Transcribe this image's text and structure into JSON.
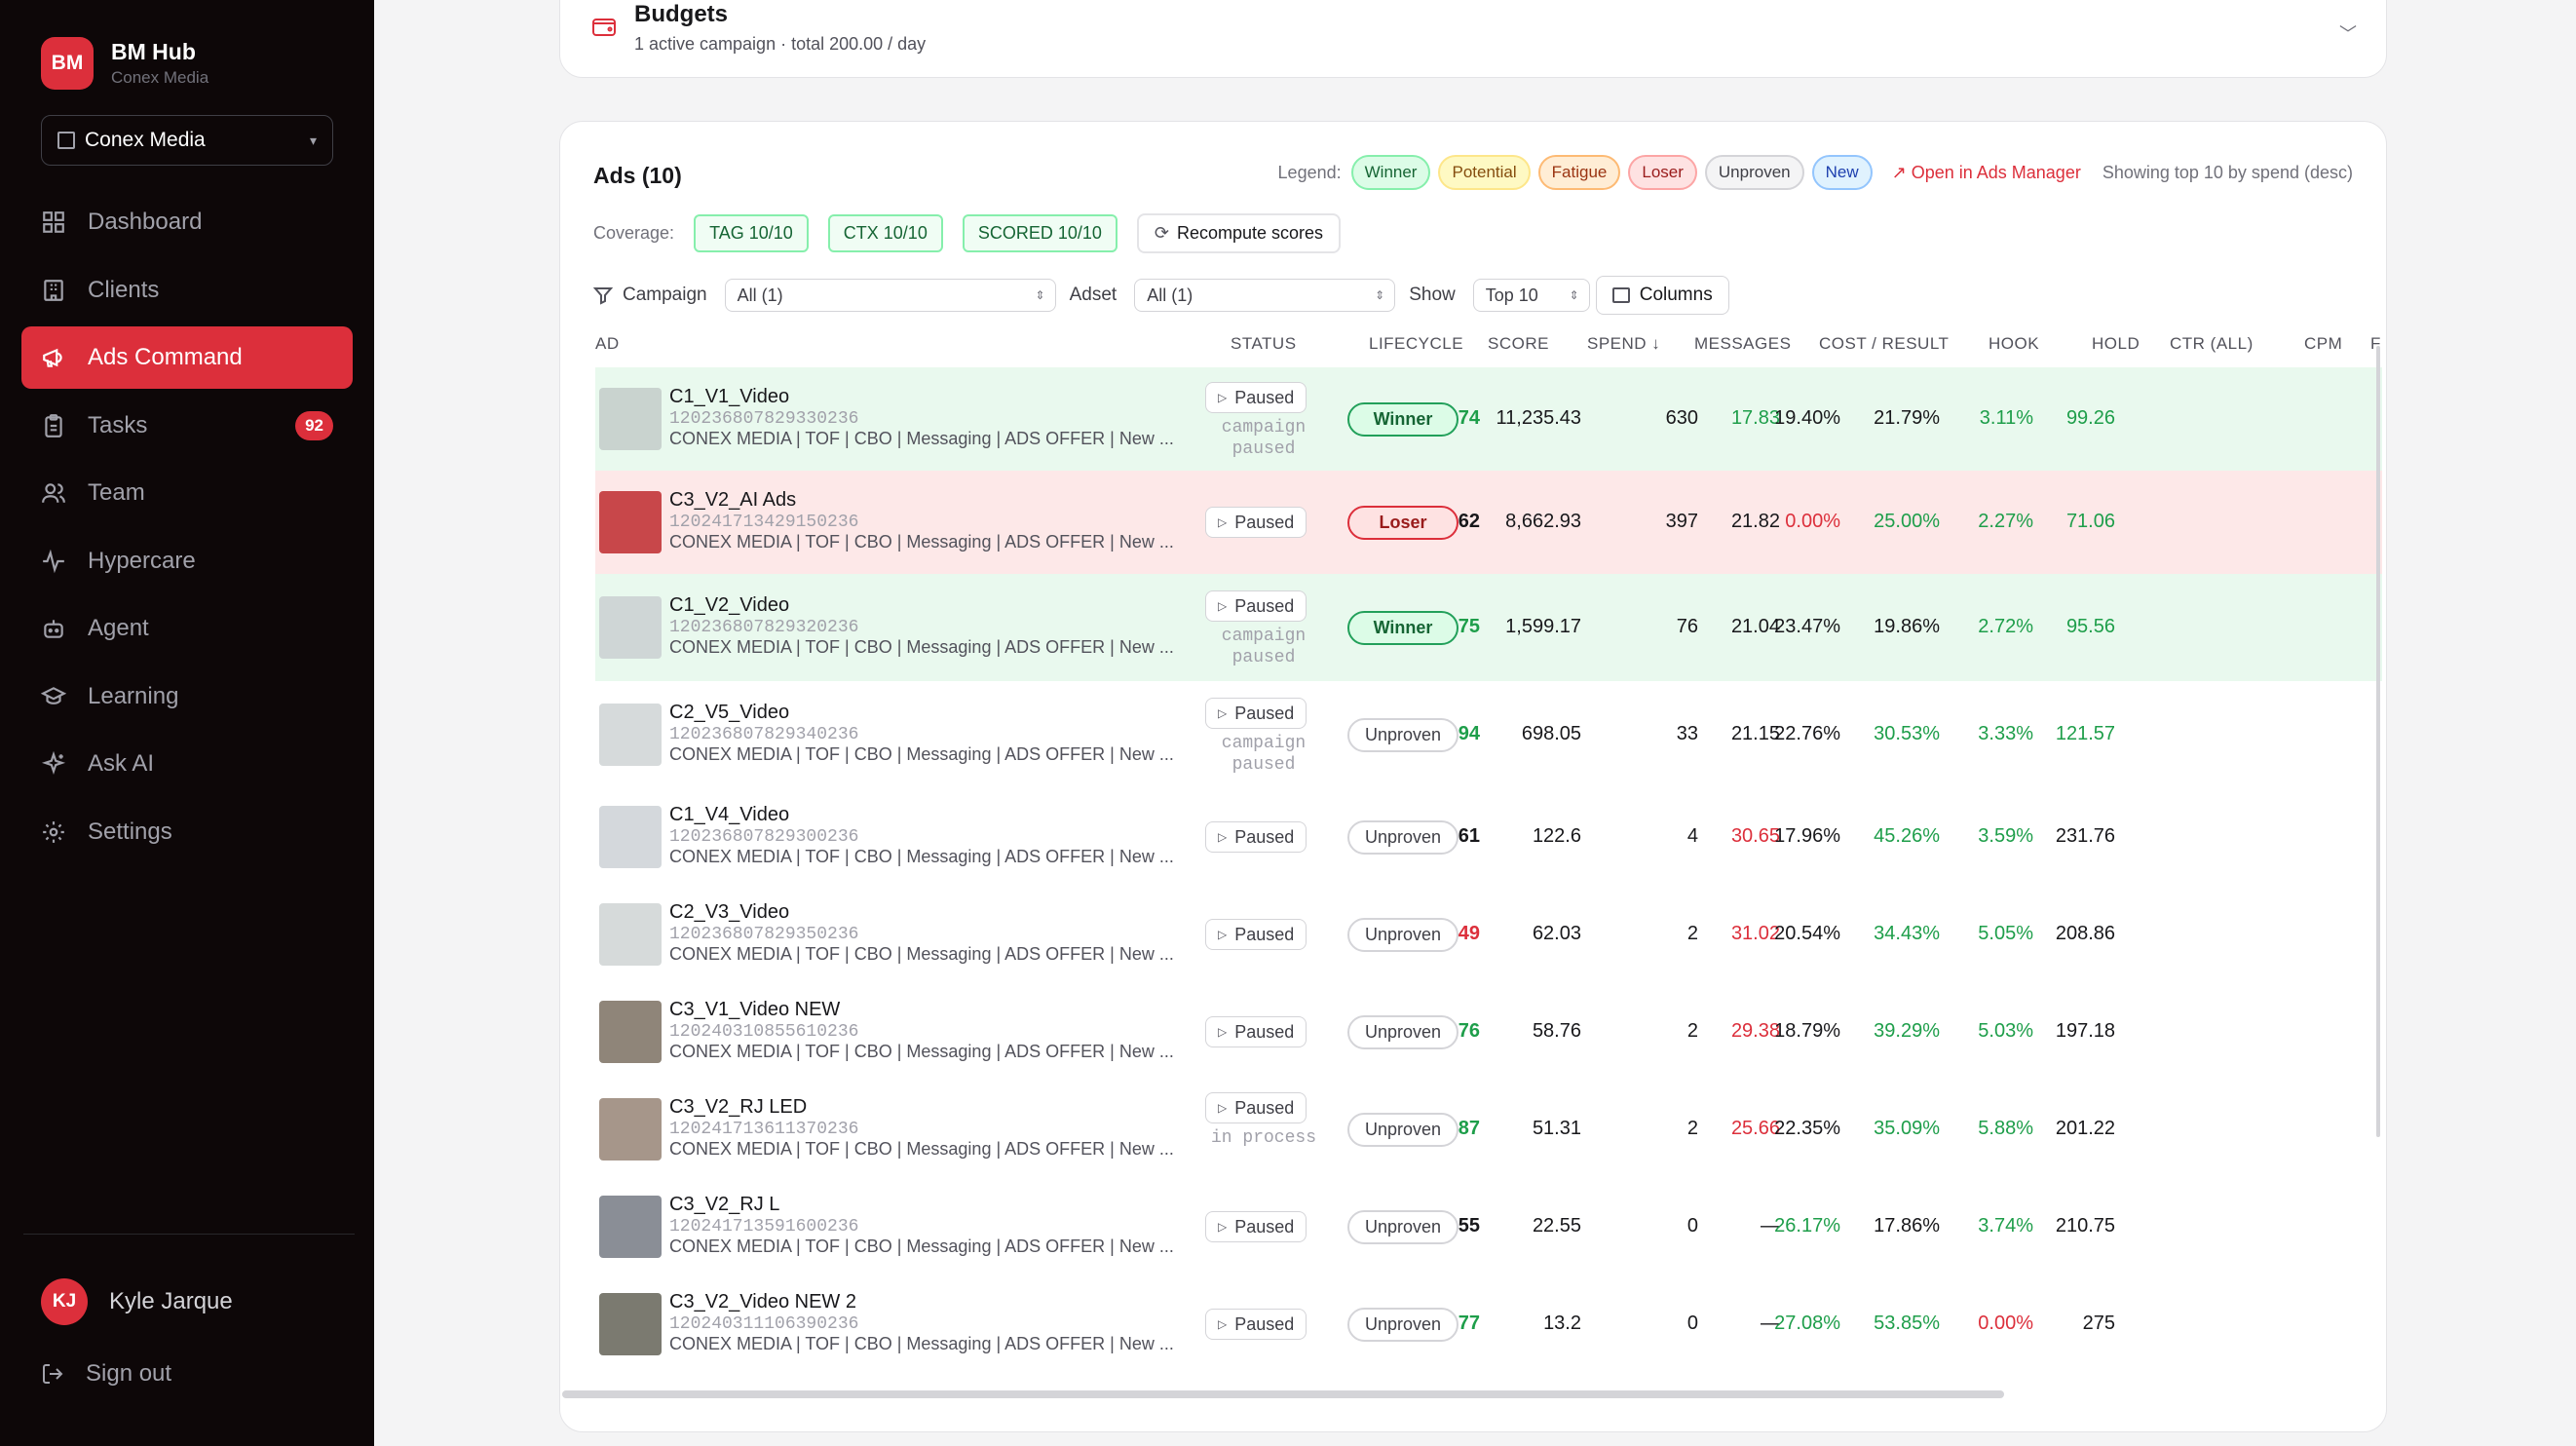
{
  "sidebar": {
    "brand_initials": "BM",
    "brand_name": "BM Hub",
    "brand_sub": "Conex Media",
    "org_select": "Conex Media",
    "nav": [
      {
        "label": "Dashboard",
        "icon": "grid-icon"
      },
      {
        "label": "Clients",
        "icon": "building-icon"
      },
      {
        "label": "Ads Command",
        "icon": "megaphone-icon",
        "active": true
      },
      {
        "label": "Tasks",
        "icon": "clipboard-icon",
        "badge": "92"
      },
      {
        "label": "Team",
        "icon": "users-icon"
      },
      {
        "label": "Hypercare",
        "icon": "pulse-icon"
      },
      {
        "label": "Agent",
        "icon": "bot-icon"
      },
      {
        "label": "Learning",
        "icon": "graduation-cap-icon"
      },
      {
        "label": "Ask AI",
        "icon": "sparkles-icon"
      },
      {
        "label": "Settings",
        "icon": "gear-icon"
      }
    ],
    "user_initials": "KJ",
    "user_name": "Kyle Jarque",
    "signout": "Sign out"
  },
  "budgets": {
    "title": "Budgets",
    "subtitle": "1 active campaign · total 200.00 / day"
  },
  "ads": {
    "title": "Ads (10)",
    "legend_label": "Legend:",
    "legend": [
      "Winner",
      "Potential",
      "Fatigue",
      "Loser",
      "Unproven",
      "New"
    ],
    "open_link": "↗ Open in Ads Manager",
    "showing": "Showing top 10 by spend (desc)",
    "coverage_label": "Coverage:",
    "coverage": [
      "TAG  10/10",
      "CTX  10/10",
      "SCORED  10/10"
    ],
    "recompute": "Recompute scores",
    "filter_campaign_label": "Campaign",
    "filter_campaign_value": "All (1)",
    "filter_adset_label": "Adset",
    "filter_adset_value": "All (1)",
    "show_label": "Show",
    "show_value": "Top 10",
    "columns_btn": "Columns",
    "headers": [
      "AD",
      "STATUS",
      "LIFECYCLE",
      "SCORE",
      "SPEND ↓",
      "MESSAGES",
      "COST / RESULT",
      "HOOK",
      "HOLD",
      "CTR (ALL)",
      "CPM",
      "F"
    ],
    "rows": [
      {
        "name": "C1_V1_Video",
        "id": "120236807829330236",
        "campaign": "CONEX MEDIA | TOF | CBO | Messaging | ADS OFFER | New ...",
        "status": "Paused",
        "note": "campaign paused",
        "lifecycle": "Winner",
        "score": "74",
        "spend": "11,235.43",
        "messages": "630",
        "cost": "17.83",
        "hook": "19.40%",
        "hold": "21.79%",
        "ctr": "3.11%",
        "cpm": "99.26"
      },
      {
        "name": "C3_V2_AI Ads",
        "id": "120241713429150236",
        "campaign": "CONEX MEDIA | TOF | CBO | Messaging | ADS OFFER | New ...",
        "status": "Paused",
        "note": "",
        "lifecycle": "Loser",
        "score": "62",
        "spend": "8,662.93",
        "messages": "397",
        "cost": "21.82",
        "hook": "0.00%",
        "hold": "25.00%",
        "ctr": "2.27%",
        "cpm": "71.06"
      },
      {
        "name": "C1_V2_Video",
        "id": "120236807829320236",
        "campaign": "CONEX MEDIA | TOF | CBO | Messaging | ADS OFFER | New ...",
        "status": "Paused",
        "note": "campaign paused",
        "lifecycle": "Winner",
        "score": "75",
        "spend": "1,599.17",
        "messages": "76",
        "cost": "21.04",
        "hook": "23.47%",
        "hold": "19.86%",
        "ctr": "2.72%",
        "cpm": "95.56"
      },
      {
        "name": "C2_V5_Video",
        "id": "120236807829340236",
        "campaign": "CONEX MEDIA | TOF | CBO | Messaging | ADS OFFER | New ...",
        "status": "Paused",
        "note": "campaign paused",
        "lifecycle": "Unproven",
        "score": "94",
        "spend": "698.05",
        "messages": "33",
        "cost": "21.15",
        "hook": "22.76%",
        "hold": "30.53%",
        "ctr": "3.33%",
        "cpm": "121.57"
      },
      {
        "name": "C1_V4_Video",
        "id": "120236807829300236",
        "campaign": "CONEX MEDIA | TOF | CBO | Messaging | ADS OFFER | New ...",
        "status": "Paused",
        "note": "",
        "lifecycle": "Unproven",
        "score": "61",
        "spend": "122.6",
        "messages": "4",
        "cost": "30.65",
        "hook": "17.96%",
        "hold": "45.26%",
        "ctr": "3.59%",
        "cpm": "231.76"
      },
      {
        "name": "C2_V3_Video",
        "id": "120236807829350236",
        "campaign": "CONEX MEDIA | TOF | CBO | Messaging | ADS OFFER | New ...",
        "status": "Paused",
        "note": "",
        "lifecycle": "Unproven",
        "score": "49",
        "spend": "62.03",
        "messages": "2",
        "cost": "31.02",
        "hook": "20.54%",
        "hold": "34.43%",
        "ctr": "5.05%",
        "cpm": "208.86"
      },
      {
        "name": "C3_V1_Video NEW",
        "id": "120240310855610236",
        "campaign": "CONEX MEDIA | TOF | CBO | Messaging | ADS OFFER | New ...",
        "status": "Paused",
        "note": "",
        "lifecycle": "Unproven",
        "score": "76",
        "spend": "58.76",
        "messages": "2",
        "cost": "29.38",
        "hook": "18.79%",
        "hold": "39.29%",
        "ctr": "5.03%",
        "cpm": "197.18"
      },
      {
        "name": "C3_V2_RJ LED",
        "id": "120241713611370236",
        "campaign": "CONEX MEDIA | TOF | CBO | Messaging | ADS OFFER | New ...",
        "status": "Paused",
        "note": "in process",
        "lifecycle": "Unproven",
        "score": "87",
        "spend": "51.31",
        "messages": "2",
        "cost": "25.66",
        "hook": "22.35%",
        "hold": "35.09%",
        "ctr": "5.88%",
        "cpm": "201.22"
      },
      {
        "name": "C3_V2_RJ L",
        "id": "120241713591600236",
        "campaign": "CONEX MEDIA | TOF | CBO | Messaging | ADS OFFER | New ...",
        "status": "Paused",
        "note": "",
        "lifecycle": "Unproven",
        "score": "55",
        "spend": "22.55",
        "messages": "0",
        "cost": "—",
        "hook": "26.17%",
        "hold": "17.86%",
        "ctr": "3.74%",
        "cpm": "210.75"
      },
      {
        "name": "C3_V2_Video NEW 2",
        "id": "120240311106390236",
        "campaign": "CONEX MEDIA | TOF | CBO | Messaging | ADS OFFER | New ...",
        "status": "Paused",
        "note": "",
        "lifecycle": "Unproven",
        "score": "77",
        "spend": "13.2",
        "messages": "0",
        "cost": "—",
        "hook": "27.08%",
        "hold": "53.85%",
        "ctr": "0.00%",
        "cpm": "275"
      }
    ]
  }
}
